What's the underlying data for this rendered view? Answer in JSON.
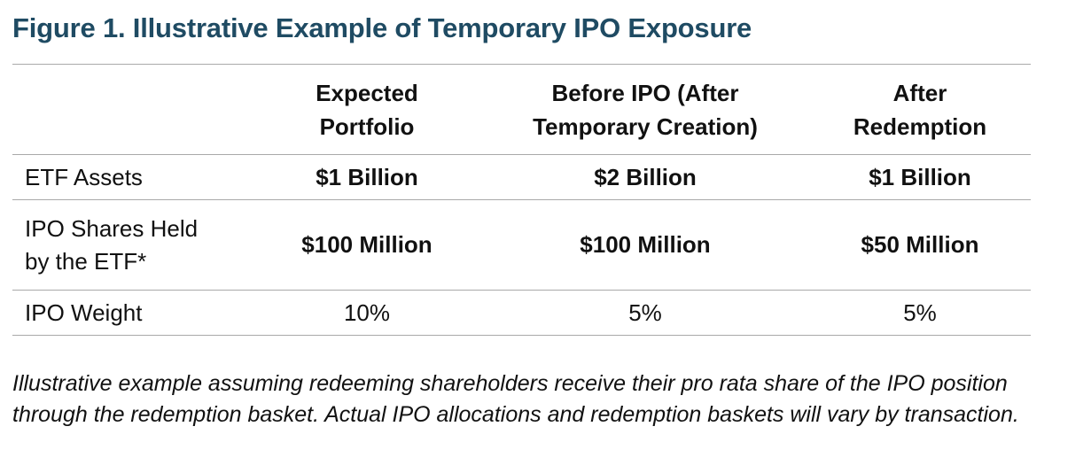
{
  "figure": {
    "title": "Figure 1. Illustrative Example of Temporary IPO Exposure"
  },
  "table": {
    "columns": [
      {
        "line1": "",
        "line2": ""
      },
      {
        "line1": "Expected",
        "line2": "Portfolio"
      },
      {
        "line1": "Before IPO (After",
        "line2": "Temporary Creation)"
      },
      {
        "line1": "After",
        "line2": "Redemption"
      }
    ],
    "rows": [
      {
        "label_line1": "ETF Assets",
        "label_line2": "",
        "values": [
          "$1 Billion",
          "$2 Billion",
          "$1 Billion"
        ],
        "bold": true
      },
      {
        "label_line1": "IPO Shares Held",
        "label_line2": "by the ETF*",
        "values": [
          "$100 Million",
          "$100 Million",
          "$50 Million"
        ],
        "bold": true
      },
      {
        "label_line1": "IPO Weight",
        "label_line2": "",
        "values": [
          "10%",
          "5%",
          "5%"
        ],
        "bold": false
      }
    ]
  },
  "footnote": {
    "text": "Illustrative example assuming redeeming shareholders receive their pro rata share of the IPO position through the redemption basket. Actual IPO allocations and redemption baskets will vary by transaction."
  },
  "colors": {
    "title": "#1f4b63",
    "rule": "#a9a9a9",
    "text": "#111111"
  }
}
